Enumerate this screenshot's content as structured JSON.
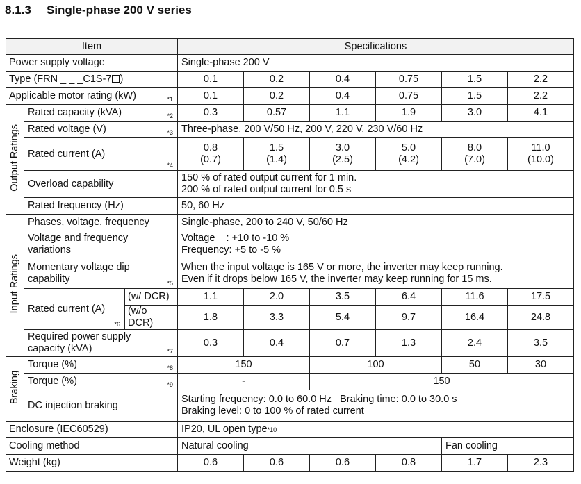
{
  "heading": {
    "number": "8.1.3",
    "title": "Single-phase 200 V series"
  },
  "header": {
    "item": "Item",
    "specs": "Specifications"
  },
  "power_supply": {
    "label": "Power supply voltage",
    "value": "Single-phase 200 V"
  },
  "type": {
    "label": "Type (FRN _ _ _C1S-7",
    "values": [
      "0.1",
      "0.2",
      "0.4",
      "0.75",
      "1.5",
      "2.2"
    ]
  },
  "motor": {
    "label": "Applicable motor rating (kW)",
    "note": "*1",
    "values": [
      "0.1",
      "0.2",
      "0.4",
      "0.75",
      "1.5",
      "2.2"
    ]
  },
  "output": {
    "group": "Output Ratings",
    "capacity": {
      "label": "Rated capacity (kVA)",
      "note": "*2",
      "values": [
        "0.3",
        "0.57",
        "1.1",
        "1.9",
        "3.0",
        "4.1"
      ]
    },
    "voltage": {
      "label": "Rated voltage (V)",
      "note": "*3",
      "value": "Three-phase, 200 V/50 Hz, 200 V, 220 V, 230 V/60 Hz"
    },
    "current": {
      "label": "Rated current (A)",
      "note": "*4",
      "values": [
        "0.8",
        "1.5",
        "3.0",
        "5.0",
        "8.0",
        "11.0"
      ],
      "values2": [
        "(0.7)",
        "(1.4)",
        "(2.5)",
        "(4.2)",
        "(7.0)",
        "(10.0)"
      ]
    },
    "overload": {
      "label": "Overload capability",
      "line1": "150 % of rated output current for 1 min.",
      "line2": "200 % of rated output current for 0.5 s"
    },
    "frequency": {
      "label": "Rated frequency (Hz)",
      "value": "50, 60 Hz"
    }
  },
  "input": {
    "group": "Input Ratings",
    "phases": {
      "label": "Phases, voltage, frequency",
      "value": "Single-phase, 200 to 240 V, 50/60 Hz"
    },
    "variations": {
      "label1": "Voltage and frequency",
      "label2": "variations",
      "line1": "Voltage    : +10 to -10 %",
      "line2": "Frequency: +5 to -5 %"
    },
    "dip": {
      "label1": "Momentary voltage dip",
      "label2": "capability",
      "note": "*5",
      "line1": "When the input voltage is 165 V or more, the inverter may keep running.",
      "line2": "Even if it drops below 165 V, the inverter may keep running for 15 ms."
    },
    "current": {
      "label": "Rated current (A)",
      "note": "*6",
      "dcr_label": "(w/ DCR)",
      "dcr_values": [
        "1.1",
        "2.0",
        "3.5",
        "6.4",
        "11.6",
        "17.5"
      ],
      "nodcr_label": "(w/o DCR)",
      "nodcr_values": [
        "1.8",
        "3.3",
        "5.4",
        "9.7",
        "16.4",
        "24.8"
      ]
    },
    "required": {
      "label1": "Required power supply",
      "label2": "capacity (kVA)",
      "note": "*7",
      "values": [
        "0.3",
        "0.4",
        "0.7",
        "1.3",
        "2.4",
        "3.5"
      ]
    }
  },
  "braking": {
    "group": "Braking",
    "torque1": {
      "label": "Torque (%)",
      "note": "*8",
      "a": "150",
      "b": "100",
      "c": "50",
      "d": "30"
    },
    "torque2": {
      "label": "Torque (%)",
      "note": "*9",
      "a": "-",
      "b": "150"
    },
    "dc": {
      "label": "DC injection braking",
      "line1": "Starting frequency: 0.0 to 60.0 Hz   Braking time: 0.0 to 30.0 s",
      "line2": "Braking level: 0 to 100 % of rated current"
    }
  },
  "enclosure": {
    "label": "Enclosure (IEC60529)",
    "value": "IP20, UL open type",
    "note": "*10"
  },
  "cooling": {
    "label": "Cooling method",
    "natural": "Natural cooling",
    "fan": "Fan cooling"
  },
  "weight": {
    "label": "Weight (kg)",
    "values": [
      "0.6",
      "0.6",
      "0.6",
      "0.8",
      "1.7",
      "2.3"
    ]
  }
}
